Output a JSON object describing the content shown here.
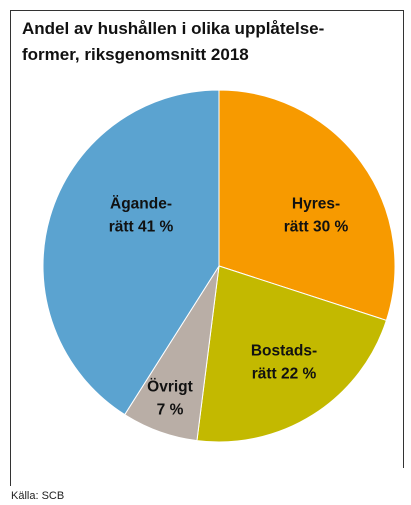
{
  "chart_data": {
    "type": "pie",
    "title": [
      "Andel av hushållen i olika upplåtelse-",
      "former, riksgenomsnitt 2018"
    ],
    "values": [
      30,
      22,
      7,
      41
    ],
    "value_labels": [
      [
        "Hyres-",
        "rätt 30 %"
      ],
      [
        "Bostads-",
        "rätt 22 %"
      ],
      [
        "Övrigt",
        "7 %"
      ],
      [
        "Ägande-",
        "rätt 41 %"
      ]
    ],
    "colors": [
      "#f79a00",
      "#c3b900",
      "#b9aea6",
      "#5ba3d0"
    ],
    "source": "Källa: SCB"
  }
}
